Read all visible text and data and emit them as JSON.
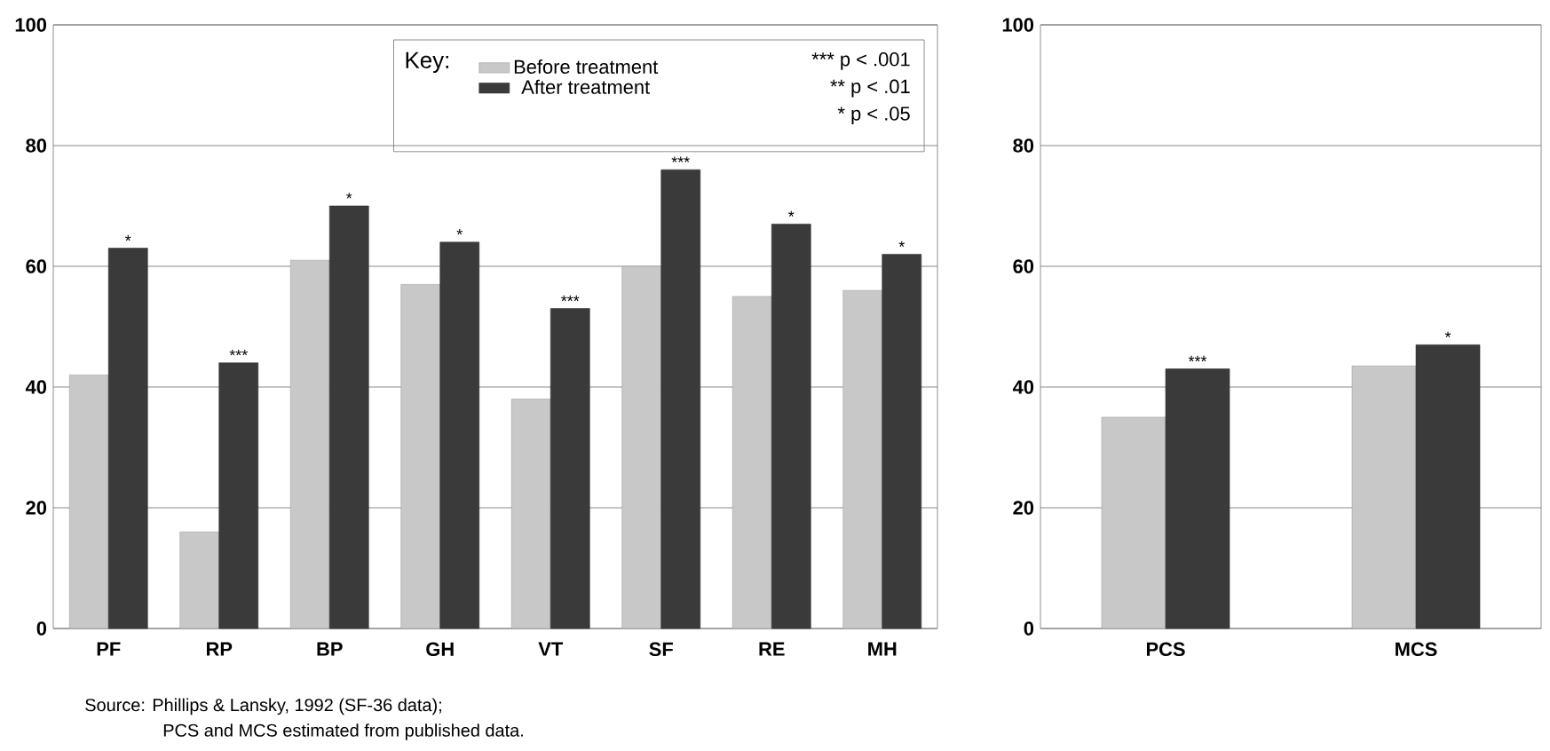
{
  "chart_data": [
    {
      "type": "bar",
      "categories": [
        "PF",
        "RP",
        "BP",
        "GH",
        "VT",
        "SF",
        "RE",
        "MH"
      ],
      "series": [
        {
          "name": "Before treatment",
          "color": "#c8c8c8",
          "values": [
            42,
            16,
            61,
            57,
            38,
            60,
            55,
            56
          ]
        },
        {
          "name": "After treatment",
          "color": "#3a3a3a",
          "values": [
            63,
            44,
            70,
            64,
            53,
            76,
            67,
            62
          ]
        }
      ],
      "ylim": [
        0,
        100
      ],
      "yticks": [
        0,
        20,
        40,
        60,
        80,
        100
      ],
      "grid": "y",
      "legend": "top right",
      "legend_title": "Key:",
      "annotations": [
        "*** p < .001",
        "** p < .01",
        "* p < .05",
        "Source: Phillips & Lansky, 1992 (SF-36 data);",
        "PCS and MCS estimated from published data.",
        {
          "text": "*",
          "x": "PF",
          "y": 63
        },
        {
          "text": "***",
          "x": "RP",
          "y": 44
        },
        {
          "text": "*",
          "x": "BP",
          "y": 70
        },
        {
          "text": "*",
          "x": "GH",
          "y": 64
        },
        {
          "text": "***",
          "x": "VT",
          "y": 53
        },
        {
          "text": "***",
          "x": "SF",
          "y": 76
        },
        {
          "text": "*",
          "x": "RE",
          "y": 67
        },
        {
          "text": "*",
          "x": "MH",
          "y": 62
        }
      ]
    },
    {
      "type": "bar",
      "categories": [
        "PCS",
        "MCS"
      ],
      "series": [
        {
          "color": "#c8c8c8",
          "values": [
            35,
            43.5
          ]
        },
        {
          "color": "#3a3a3a",
          "values": [
            43,
            47
          ]
        }
      ],
      "ylim": [
        0,
        100
      ],
      "yticks": [
        0,
        20,
        40,
        60,
        80,
        100
      ],
      "grid": "y",
      "annotations": [
        {
          "text": "***",
          "x": "PCS",
          "y": 43
        },
        {
          "text": "*",
          "x": "MCS",
          "y": 47
        }
      ]
    }
  ]
}
